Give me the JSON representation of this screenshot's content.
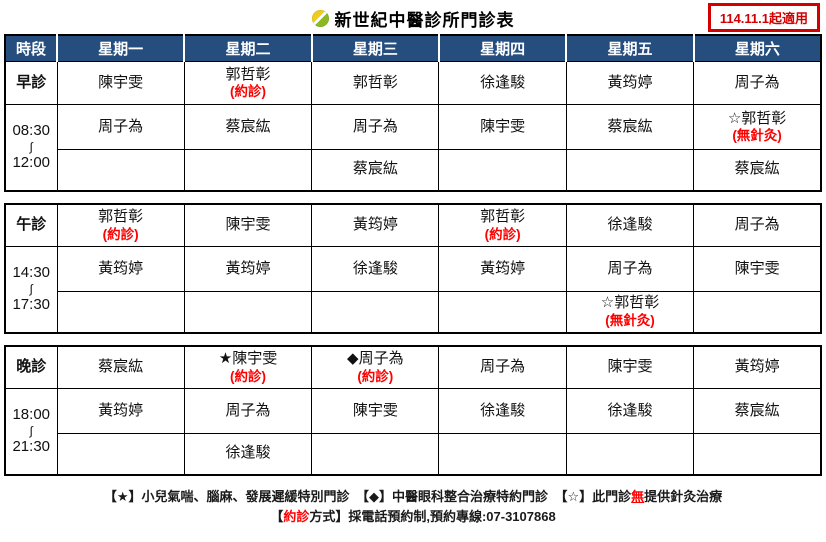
{
  "title": {
    "text": "新世紀中醫診所門診表",
    "icon": "yellow-green-sphere-icon"
  },
  "badge": {
    "text": "114.11.1起適用"
  },
  "table": {
    "header": [
      "時段",
      "星期一",
      "星期二",
      "星期三",
      "星期四",
      "星期五",
      "星期六"
    ],
    "sections": [
      {
        "id": "morning",
        "label": "早診",
        "time": {
          "start": "08:30",
          "sep": "∫",
          "end": "12:00"
        },
        "rows": [
          [
            {
              "n": "陳宇雯"
            },
            {
              "n": "郭哲彰",
              "note": "(約診)"
            },
            {
              "n": "郭哲彰"
            },
            {
              "n": "徐逢駿"
            },
            {
              "n": "黃筠婷"
            },
            {
              "n": "周子為"
            }
          ],
          [
            {
              "n": "周子為"
            },
            {
              "n": "蔡宸紘"
            },
            {
              "n": "周子為"
            },
            {
              "n": "陳宇雯"
            },
            {
              "n": "蔡宸紘"
            },
            {
              "n": "☆郭哲彰",
              "note": "(無針灸)"
            }
          ],
          [
            {},
            {},
            {
              "n": "蔡宸紘"
            },
            {},
            {},
            {
              "n": "蔡宸紘"
            }
          ]
        ]
      },
      {
        "id": "afternoon",
        "label": "午診",
        "time": {
          "start": "14:30",
          "sep": "∫",
          "end": "17:30"
        },
        "rows": [
          [
            {
              "n": "郭哲彰",
              "note": "(約診)"
            },
            {
              "n": "陳宇雯"
            },
            {
              "n": "黃筠婷"
            },
            {
              "n": "郭哲彰",
              "note": "(約診)"
            },
            {
              "n": "徐逢駿"
            },
            {
              "n": "周子為"
            }
          ],
          [
            {
              "n": "黃筠婷"
            },
            {
              "n": "黃筠婷"
            },
            {
              "n": "徐逢駿"
            },
            {
              "n": "黃筠婷"
            },
            {
              "n": "周子為"
            },
            {
              "n": "陳宇雯"
            }
          ],
          [
            {},
            {},
            {},
            {},
            {
              "n": "☆郭哲彰",
              "note": "(無針灸)"
            },
            {}
          ]
        ]
      },
      {
        "id": "evening",
        "label": "晚診",
        "time": {
          "start": "18:00",
          "sep": "∫",
          "end": "21:30"
        },
        "rows": [
          [
            {
              "n": "蔡宸紘"
            },
            {
              "n": "★陳宇雯",
              "note": "(約診)"
            },
            {
              "n": "◆周子為",
              "note": "(約診)"
            },
            {
              "n": "周子為"
            },
            {
              "n": "陳宇雯"
            },
            {
              "n": "黃筠婷"
            }
          ],
          [
            {
              "n": "黃筠婷"
            },
            {
              "n": "周子為"
            },
            {
              "n": "陳宇雯"
            },
            {
              "n": "徐逢駿"
            },
            {
              "n": "徐逢駿"
            },
            {
              "n": "蔡宸紘"
            }
          ],
          [
            {},
            {
              "n": "徐逢駿"
            },
            {},
            {},
            {},
            {}
          ]
        ]
      }
    ]
  },
  "footnotes": {
    "line1": [
      {
        "text": "【★】小兒氣喘、腦麻、發展遲緩特別門診　"
      },
      {
        "text": "【◆】中醫眼科整合治療特約門診　"
      },
      {
        "text": "【☆】此門診"
      },
      {
        "text": "無",
        "color": "red",
        "underline": true
      },
      {
        "text": "提供針灸治療"
      }
    ],
    "line2": [
      {
        "text": "【"
      },
      {
        "text": "約診",
        "color": "red"
      },
      {
        "text": "方式】採電話預約制,預約專線:07-3107868"
      }
    ]
  },
  "colors": {
    "header_bg": "#254D7E",
    "header_text": "#FFFFFF",
    "grid_border": "#000000",
    "note_red": "#FF0000",
    "badge_red": "#D40000"
  }
}
